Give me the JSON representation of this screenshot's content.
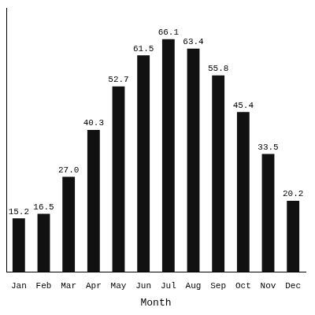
{
  "chart_data": {
    "type": "bar",
    "xlabel": "Month",
    "categories": [
      "Jan",
      "Feb",
      "Mar",
      "Apr",
      "May",
      "Jun",
      "Jul",
      "Aug",
      "Sep",
      "Oct",
      "Nov",
      "Dec"
    ],
    "values": [
      15.2,
      16.5,
      27.0,
      40.3,
      52.7,
      61.5,
      66.1,
      63.4,
      55.8,
      45.4,
      33.5,
      20.2
    ],
    "value_labels": [
      "15.2",
      "16.5",
      "27.0",
      "40.3",
      "52.7",
      "61.5",
      "66.1",
      "63.4",
      "55.8",
      "45.4",
      "33.5",
      "20.2"
    ],
    "color": "#111111",
    "ylim": [
      0,
      75
    ],
    "grid": false,
    "data_labels": true,
    "tick_labels": "x"
  }
}
